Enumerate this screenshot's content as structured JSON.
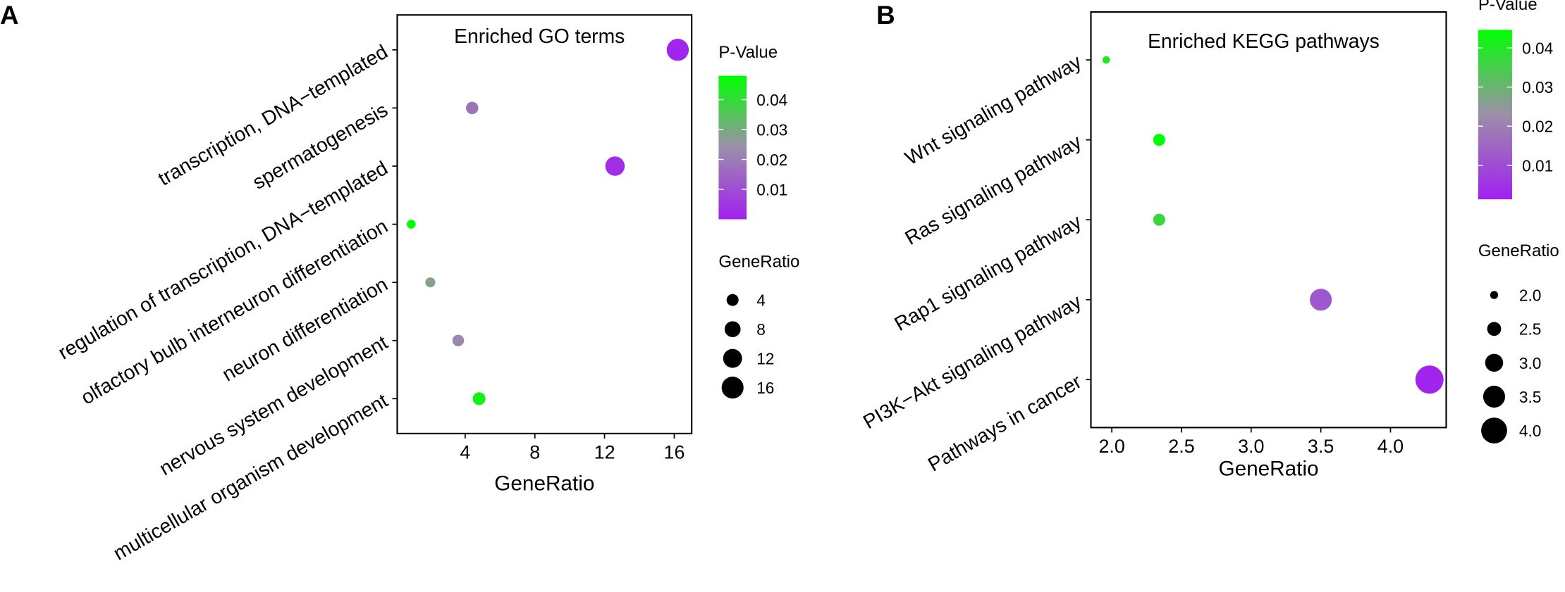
{
  "chart_data": [
    {
      "type": "scatter",
      "panel_label": "A",
      "title": "Enriched GO terms",
      "x_label": "GeneRatio",
      "categories": [
        "transcription, DNA−templated",
        "spermatogenesis",
        "regulation of transcription, DNA−templated",
        "olfactory bulb interneuron differentiation",
        "neuron differentiation",
        "nervous system development",
        "multicellular organism development"
      ],
      "values": [
        16.2,
        4.4,
        12.6,
        0.9,
        2,
        3.6,
        4.8
      ],
      "pvalues": [
        0.001,
        0.018,
        0.003,
        0.048,
        0.028,
        0.022,
        0.045
      ],
      "xlim": [
        0.1,
        17
      ],
      "xticks": [
        4,
        8,
        12,
        16
      ],
      "color_title": "P-Value",
      "clim": [
        0,
        0.048
      ],
      "cticks": [
        0.01,
        0.02,
        0.03,
        0.04
      ],
      "colors": [
        "#a020f0",
        "#9c8fa8",
        "#00ff00"
      ],
      "size_title": "GeneRatio",
      "size_values": [
        4,
        8,
        12,
        16
      ]
    },
    {
      "type": "scatter",
      "panel_label": "B",
      "title": "Enriched KEGG pathways",
      "x_label": "GeneRatio",
      "categories": [
        "Wnt signaling pathway",
        "Ras signaling pathway",
        "Rap1 signaling pathway",
        "PI3K−Akt signaling pathway",
        "Pathways in cancer"
      ],
      "values": [
        1.96,
        2.34,
        2.34,
        3.5,
        4.28
      ],
      "pvalues": [
        0.04,
        0.046,
        0.037,
        0.012,
        0.002
      ],
      "xlim": [
        1.85,
        4.4
      ],
      "xticks": [
        {
          "value": 2,
          "label": "2.0"
        },
        {
          "value": 2.5,
          "label": "2.5"
        },
        {
          "value": 3,
          "label": "3.0"
        },
        {
          "value": 3.5,
          "label": "3.5"
        },
        {
          "value": 4,
          "label": "4.0"
        }
      ],
      "color_title": "P-Value",
      "clim": [
        0.0013,
        0.0446
      ],
      "cticks": [
        0.01,
        0.02,
        0.03,
        0.04
      ],
      "colors": [
        "#a020f0",
        "#9c8fa8",
        "#00ff00"
      ],
      "size_title": "GeneRatio",
      "size_values": [
        {
          "value": 2,
          "label": "2.0"
        },
        {
          "value": 2.5,
          "label": "2.5"
        },
        {
          "value": 3,
          "label": "3.0"
        },
        {
          "value": 3.5,
          "label": "3.5"
        },
        {
          "value": 4,
          "label": "4.0"
        }
      ]
    }
  ]
}
